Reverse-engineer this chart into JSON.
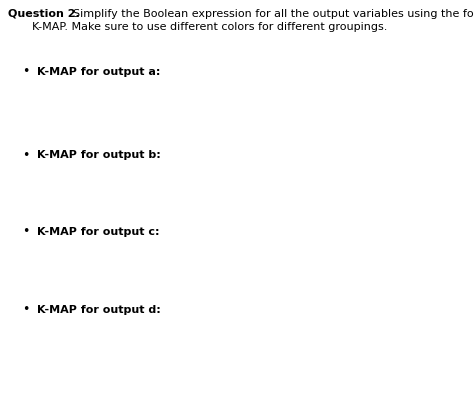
{
  "title_bold": "Question 2.",
  "title_rest": "    Simplify the Boolean expression for all the output variables using the four variable",
  "subtitle": "    K-MAP. Make sure to use different colors for different groupings.",
  "bullet_items": [
    "K-MAP for output a:",
    "K-MAP for output b:",
    "K-MAP for output c:",
    "K-MAP for output d:"
  ],
  "background_color": "#ffffff",
  "text_color": "#000000",
  "title_fontsize": 8.0,
  "body_fontsize": 8.0
}
